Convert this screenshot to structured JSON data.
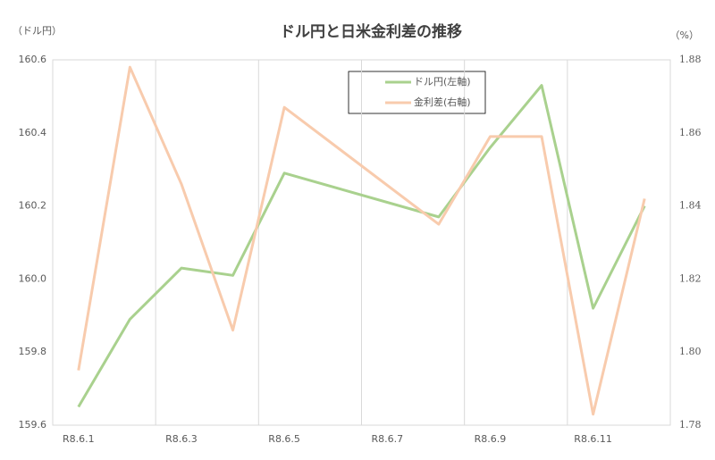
{
  "chart_data": {
    "type": "line",
    "title": "ドル円と日米金利差の推移",
    "y_label": "（ドル円）",
    "y2_label": "（%）",
    "x": [
      1,
      2,
      3,
      4,
      5,
      8,
      9,
      10,
      11,
      12
    ],
    "xlim": [
      0.5,
      12.5
    ],
    "xticks": [
      {
        "value": 1,
        "label": "R8.6.1"
      },
      {
        "value": 3,
        "label": "R8.6.3"
      },
      {
        "value": 5,
        "label": "R8.6.5"
      },
      {
        "value": 7,
        "label": "R8.6.7"
      },
      {
        "value": 9,
        "label": "R8.6.9"
      },
      {
        "value": 11,
        "label": "R8.6.11"
      }
    ],
    "ylim": [
      159.6,
      160.6
    ],
    "yticks": [
      159.6,
      159.8,
      {
        "value": 160,
        "label": "160.0"
      },
      160.2,
      160.4,
      160.6
    ],
    "y2lim": [
      1.78,
      1.88
    ],
    "y2ticks": [
      1.78,
      {
        "value": 1.8,
        "label": "1.80"
      },
      1.82,
      1.84,
      1.86,
      1.88
    ],
    "grid": true,
    "series": [
      {
        "name": "ドル円(左軸)",
        "color": "#a9d18e",
        "values": [
          159.65,
          159.89,
          160.03,
          160.01,
          160.29,
          160.17,
          160.36,
          160.53,
          159.92,
          160.2
        ]
      },
      {
        "name": "金利差(右軸)",
        "color": "#f8cbad",
        "axis": "y2",
        "values": [
          1.795,
          1.878,
          1.846,
          1.806,
          1.867,
          1.835,
          1.859,
          1.859,
          1.783,
          1.842
        ]
      }
    ]
  }
}
